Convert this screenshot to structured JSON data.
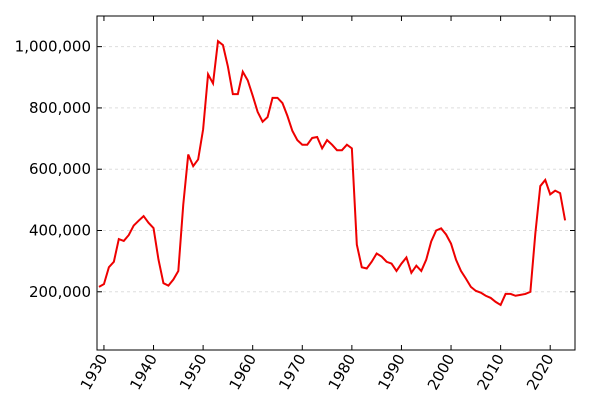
{
  "chart_data": {
    "type": "line",
    "x": [
      1929,
      1930,
      1931,
      1932,
      1933,
      1934,
      1935,
      1936,
      1937,
      1938,
      1939,
      1940,
      1941,
      1942,
      1943,
      1944,
      1945,
      1946,
      1947,
      1948,
      1949,
      1950,
      1951,
      1952,
      1953,
      1954,
      1955,
      1956,
      1957,
      1958,
      1959,
      1960,
      1961,
      1962,
      1963,
      1964,
      1965,
      1966,
      1967,
      1968,
      1969,
      1970,
      1971,
      1972,
      1973,
      1974,
      1975,
      1976,
      1977,
      1978,
      1979,
      1980,
      1981,
      1982,
      1983,
      1984,
      1985,
      1986,
      1987,
      1988,
      1989,
      1990,
      1991,
      1992,
      1993,
      1994,
      1995,
      1996,
      1997,
      1998,
      1999,
      2000,
      2001,
      2002,
      2003,
      2004,
      2005,
      2006,
      2007,
      2008,
      2009,
      2010,
      2011,
      2012,
      2013,
      2014,
      2015,
      2016,
      2017,
      2018,
      2019,
      2020,
      2021,
      2022,
      2023
    ],
    "values": [
      216000,
      225000,
      280000,
      298000,
      372000,
      366000,
      385000,
      416000,
      432000,
      447000,
      425000,
      408000,
      305000,
      228000,
      220000,
      240000,
      268000,
      485000,
      648000,
      610000,
      632000,
      730000,
      910000,
      880000,
      1018000,
      1005000,
      935000,
      845000,
      845000,
      918000,
      890000,
      840000,
      787000,
      755000,
      770000,
      833000,
      833000,
      816000,
      774000,
      725000,
      695000,
      680000,
      680000,
      702000,
      705000,
      668000,
      695000,
      680000,
      662000,
      662000,
      680000,
      668000,
      354000,
      280000,
      276000,
      298000,
      325000,
      315000,
      298000,
      292000,
      268000,
      292000,
      312000,
      262000,
      285000,
      268000,
      305000,
      364000,
      400000,
      407000,
      387000,
      357000,
      305000,
      268000,
      243000,
      216000,
      203000,
      197000,
      187000,
      180000,
      167000,
      157000,
      193000,
      193000,
      187000,
      190000,
      193000,
      200000,
      390000,
      545000,
      565000,
      518000,
      530000,
      522000,
      433000
    ],
    "color": "#ee0000",
    "xlim": [
      1928.6,
      2025
    ],
    "ylim": [
      10000,
      1100000
    ],
    "xticks": [
      1930,
      1940,
      1950,
      1960,
      1970,
      1980,
      1990,
      2000,
      2010,
      2020
    ],
    "yticks": [
      {
        "value": 200000,
        "label": "200,000"
      },
      {
        "value": 400000,
        "label": "400,000"
      },
      {
        "value": 600000,
        "label": "600,000"
      },
      {
        "value": 800000,
        "label": "800,000"
      },
      {
        "value": 1000000,
        "label": "1,000,000"
      }
    ],
    "grid": true
  }
}
